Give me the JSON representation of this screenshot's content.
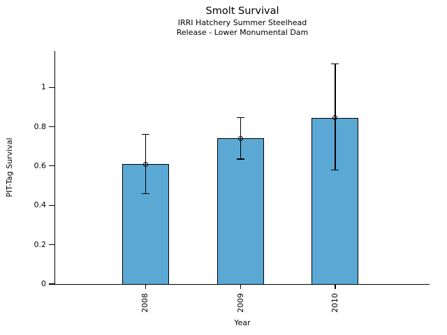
{
  "chart_data": {
    "type": "bar",
    "title": "Smolt Survival",
    "subtitle_lines": [
      "IRRI Hatchery Summer Steelhead",
      "Release - Lower Monumental Dam"
    ],
    "xlabel": "Year",
    "ylabel": "PIT-Tag Survival",
    "categories": [
      "2008",
      "2009",
      "2010"
    ],
    "values": [
      0.61,
      0.74,
      0.845
    ],
    "error_low": [
      0.46,
      0.635,
      0.58
    ],
    "error_high": [
      0.76,
      0.845,
      1.12
    ],
    "yticks": [
      0,
      0.2,
      0.4,
      0.6,
      0.8,
      1
    ],
    "ytick_labels": [
      "0",
      "0.2",
      "0.4",
      "0.6",
      "0.8",
      "1"
    ],
    "ylim": [
      0,
      1.185
    ],
    "grid": false,
    "legend": false,
    "marker": "open-circle",
    "bar_color": "#5BA8D4",
    "edge_color": "#000000",
    "bar_centers_frac": [
      0.241,
      0.496,
      0.748
    ],
    "bar_width_frac": 0.125
  }
}
